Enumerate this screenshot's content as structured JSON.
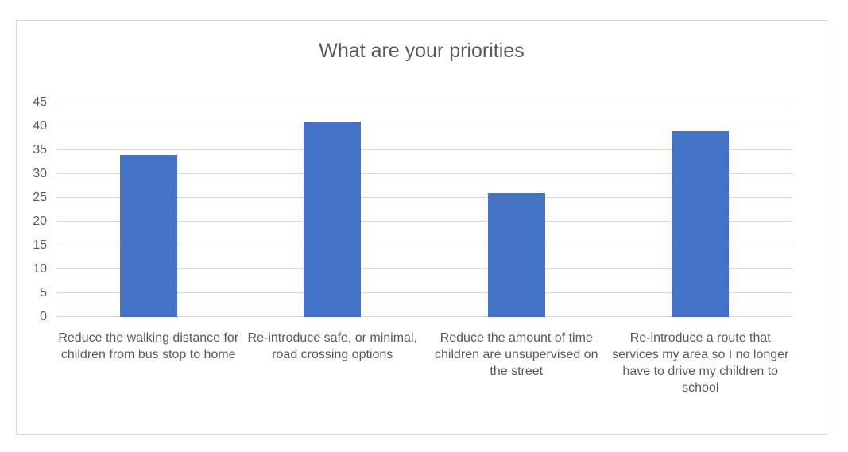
{
  "chart_data": {
    "type": "bar",
    "title": "What are your priorities",
    "categories": [
      "Reduce the walking distance for children from bus stop to home",
      "Re-introduce safe, or minimal, road crossing options",
      "Reduce the amount of time children are unsupervised on the street",
      "Re-introduce a route that services my area so I no longer have to drive my children to school"
    ],
    "values": [
      34,
      41,
      26,
      39
    ],
    "xlabel": "",
    "ylabel": "",
    "ylim": [
      0,
      45
    ],
    "yticks": [
      0,
      5,
      10,
      15,
      20,
      25,
      30,
      35,
      40,
      45
    ],
    "grid": true,
    "legend_position": "none",
    "bar_color": "#4472C4"
  },
  "colors": {
    "bar": "#4472C4",
    "gridline": "#D9D9D9",
    "axis_text": "#595959",
    "title_text": "#595959",
    "frame_border": "#D6D6D6",
    "background": "#FFFFFF"
  }
}
